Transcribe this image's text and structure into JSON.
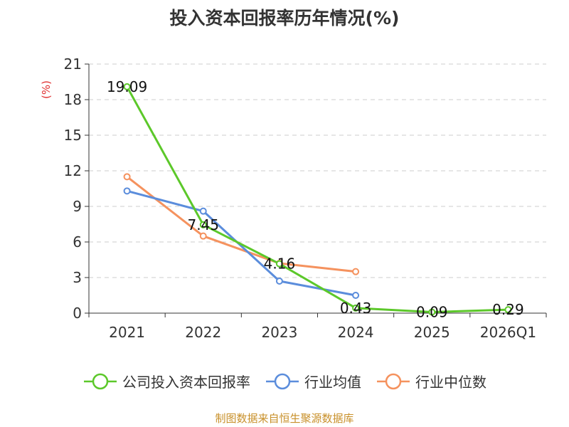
{
  "chart_data": {
    "type": "line",
    "title": "投入资本回报率历年情况(%)",
    "unit_label": "(%)",
    "categories": [
      "2021",
      "2022",
      "2023",
      "2024",
      "2025",
      "2026Q1"
    ],
    "ylim": [
      0,
      21
    ],
    "yticks": [
      "0",
      "3",
      "6",
      "9",
      "12",
      "15",
      "18",
      "21"
    ],
    "grid": true,
    "legend_position": "bottom",
    "series": [
      {
        "name": "公司投入资本回报率",
        "color": "#5cc82a",
        "values": [
          19.09,
          7.45,
          4.16,
          0.43,
          0.09,
          0.29
        ],
        "labels": [
          "19.09",
          "7.45",
          "4.16",
          "0.43",
          "0.09",
          "0.29"
        ]
      },
      {
        "name": "行业均值",
        "color": "#5b8ddc",
        "values": [
          10.3,
          8.6,
          2.7,
          1.5,
          null,
          null
        ]
      },
      {
        "name": "行业中位数",
        "color": "#f5925e",
        "values": [
          11.5,
          6.5,
          4.2,
          3.5,
          null,
          null
        ]
      }
    ]
  },
  "source": "制图数据来自恒生聚源数据库"
}
